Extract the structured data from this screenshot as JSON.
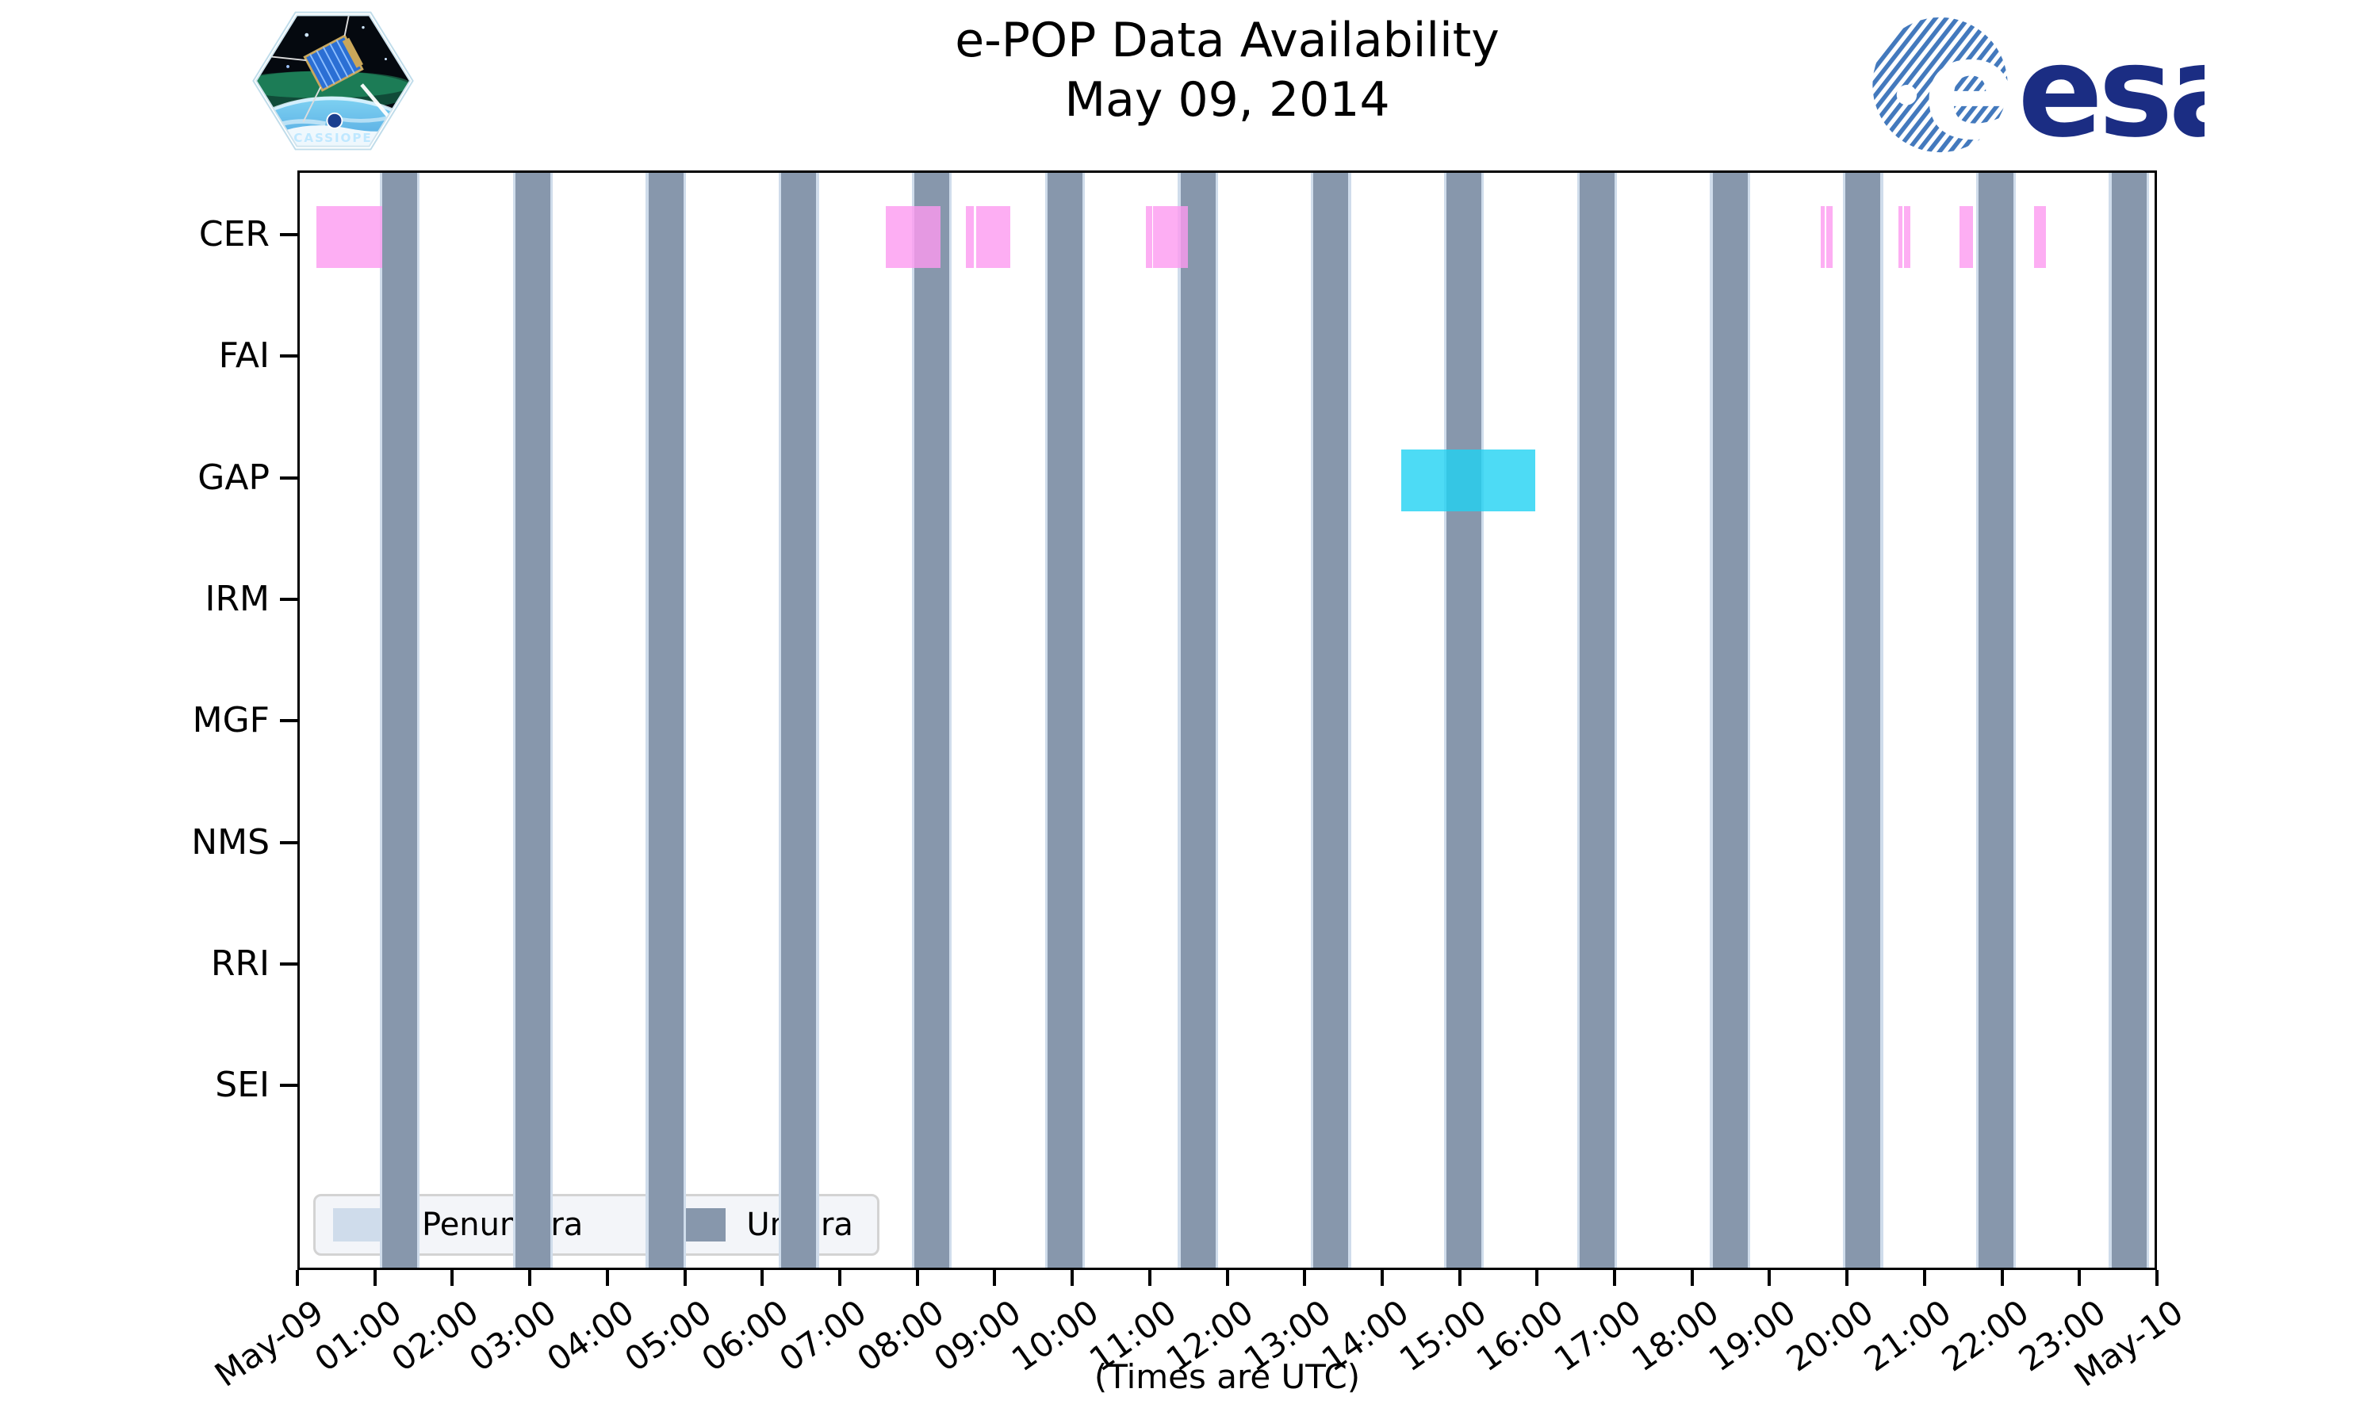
{
  "header": {
    "title_line1": "e-POP Data Availability",
    "title_line2": "May 09, 2014",
    "cassiope_logo_text": "CASSIOPE",
    "esa_logo_text": "esa"
  },
  "chart_data": {
    "type": "timeline",
    "title": "e-POP Data Availability",
    "subtitle": "May 09, 2014",
    "xlabel": "(Times are UTC)",
    "x_range_hours": [
      0,
      24
    ],
    "x_tick_labels": [
      "May-09",
      "01:00",
      "02:00",
      "03:00",
      "04:00",
      "05:00",
      "06:00",
      "07:00",
      "08:00",
      "09:00",
      "10:00",
      "11:00",
      "12:00",
      "13:00",
      "14:00",
      "15:00",
      "16:00",
      "17:00",
      "18:00",
      "19:00",
      "20:00",
      "21:00",
      "22:00",
      "23:00",
      "May-10"
    ],
    "rows": [
      "CER",
      "FAI",
      "GAP",
      "IRM",
      "MGF",
      "NMS",
      "RRI",
      "SEI"
    ],
    "umbra_intervals": [
      [
        "01:04",
        "01:31"
      ],
      [
        "02:47",
        "03:14"
      ],
      [
        "04:30",
        "04:57"
      ],
      [
        "06:13",
        "06:40"
      ],
      [
        "07:56",
        "08:23"
      ],
      [
        "09:39",
        "10:06"
      ],
      [
        "11:22",
        "11:49"
      ],
      [
        "13:05",
        "13:32"
      ],
      [
        "14:48",
        "15:15"
      ],
      [
        "16:31",
        "16:58"
      ],
      [
        "18:14",
        "18:41"
      ],
      [
        "19:57",
        "20:24"
      ],
      [
        "21:40",
        "22:07"
      ],
      [
        "23:23",
        "23:50"
      ]
    ],
    "penumbra_edge_minutes": 2,
    "availability_bars": [
      {
        "row": "CER",
        "start": "00:13",
        "end": "01:04"
      },
      {
        "row": "CER",
        "start": "07:34",
        "end": "08:16"
      },
      {
        "row": "CER",
        "start": "08:36",
        "end": "08:42"
      },
      {
        "row": "CER",
        "start": "08:44",
        "end": "09:10"
      },
      {
        "row": "CER",
        "start": "10:55",
        "end": "11:00"
      },
      {
        "row": "CER",
        "start": "11:01",
        "end": "11:28"
      },
      {
        "row": "CER",
        "start": "19:38",
        "end": "19:41"
      },
      {
        "row": "CER",
        "start": "19:42",
        "end": "19:47"
      },
      {
        "row": "CER",
        "start": "20:38",
        "end": "20:41"
      },
      {
        "row": "CER",
        "start": "20:42",
        "end": "20:47"
      },
      {
        "row": "CER",
        "start": "21:25",
        "end": "21:36"
      },
      {
        "row": "CER",
        "start": "22:23",
        "end": "22:32"
      },
      {
        "row": "GAP",
        "start": "14:13",
        "end": "15:57"
      }
    ],
    "legend": [
      {
        "label": "Penumbra",
        "color": "#CFDCEB"
      },
      {
        "label": "Umbra",
        "color": "#8797AC"
      }
    ],
    "colors": {
      "umbra": "#8797AC",
      "penumbra": "#CFDCEB",
      "CER": "#FC9AF0",
      "GAP": "#20D2F2",
      "bar_alpha": 0.8,
      "esa_navy": "#1B2D83",
      "esa_stripe_blue": "#4379BD"
    }
  }
}
